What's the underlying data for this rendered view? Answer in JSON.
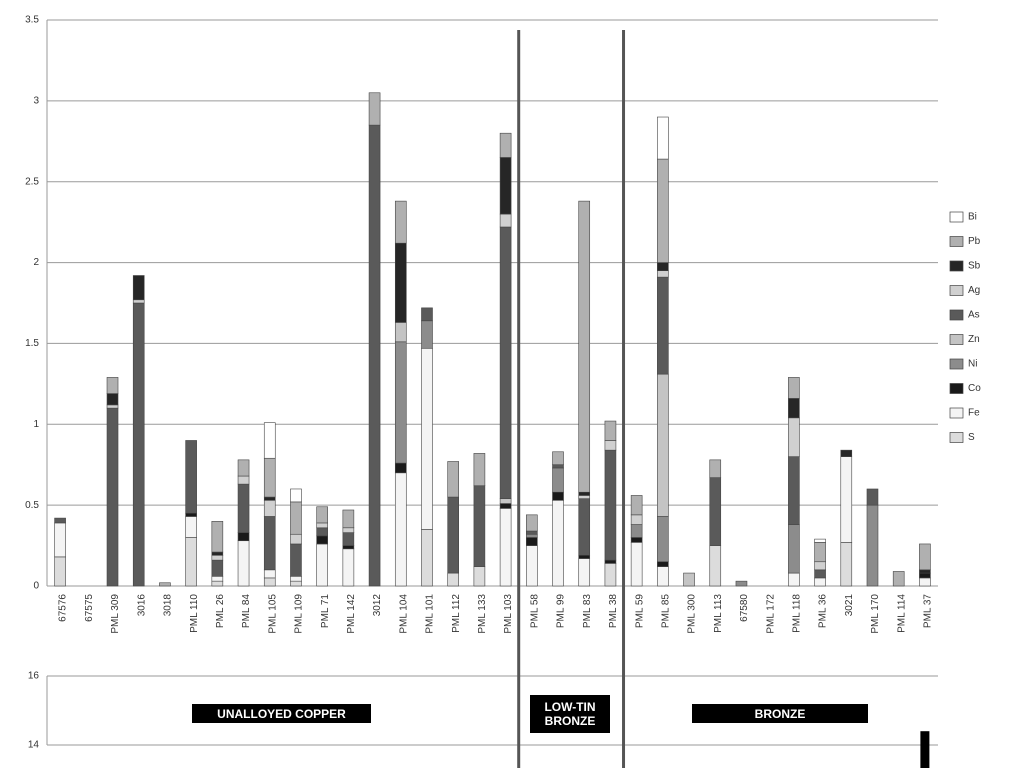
{
  "chart_data": [
    {
      "type": "bar",
      "stacked": true,
      "grid": true,
      "legend": "right",
      "annotations": [
        "UNALLOYED COPPER",
        "LOW-TIN BRONZE",
        "BRONZE"
      ],
      "categories": [
        "67576",
        "67575",
        "PML 309",
        "3016",
        "3018",
        "PML 110",
        "PML 26",
        "PML 84",
        "PML 105",
        "PML 109",
        "PML 71",
        "PML 142",
        "3012",
        "PML 104",
        "PML 101",
        "PML 112",
        "PML 133",
        "PML 103",
        "PML 58",
        "PML 99",
        "PML 83",
        "PML 38",
        "PML 59",
        "PML 85",
        "PML 300",
        "PML 113",
        "67580",
        "PML 172",
        "PML 118",
        "PML 36",
        "3021",
        "PML 170",
        "PML 114",
        "PML 37"
      ],
      "ylim": [
        0,
        3.5
      ],
      "yticks": [
        0,
        0.5,
        1,
        1.5,
        2,
        2.5,
        3,
        3.5
      ],
      "series": [
        {
          "name": "S",
          "color": "#dcdcdc",
          "values": [
            0.18,
            0,
            0,
            0,
            0,
            0.3,
            0.03,
            0,
            0.05,
            0.03,
            0,
            0,
            0,
            0,
            0.35,
            0.08,
            0.12,
            0,
            0,
            0,
            0,
            0.14,
            0,
            0,
            0,
            0.25,
            0,
            0,
            0,
            0,
            0.27,
            0,
            0,
            0
          ]
        },
        {
          "name": "Fe",
          "color": "#f4f4f4",
          "values": [
            0.21,
            0,
            0,
            0,
            0,
            0.13,
            0.03,
            0.28,
            0.05,
            0.03,
            0.26,
            0.23,
            0,
            0.7,
            1.12,
            0,
            0,
            0.48,
            0.25,
            0.53,
            0.17,
            0,
            0.27,
            0.12,
            0,
            0,
            0,
            0,
            0.08,
            0.05,
            0.53,
            0,
            0,
            0.05
          ]
        },
        {
          "name": "Co",
          "color": "#1a1a1a",
          "values": [
            0,
            0,
            0,
            0,
            0,
            0.02,
            0,
            0.05,
            0,
            0,
            0.05,
            0.02,
            0,
            0.06,
            0,
            0,
            0,
            0.03,
            0.05,
            0.05,
            0.02,
            0.02,
            0.03,
            0.03,
            0,
            0,
            0,
            0,
            0,
            0,
            0,
            0,
            0,
            0.03
          ]
        },
        {
          "name": "Ni",
          "color": "#8c8c8c",
          "values": [
            0,
            0,
            0,
            0,
            0,
            0,
            0,
            0,
            0,
            0,
            0,
            0,
            0,
            0.75,
            0.17,
            0,
            0,
            0,
            0.02,
            0.15,
            0,
            0,
            0.08,
            0.28,
            0,
            0,
            0.03,
            0,
            0.3,
            0,
            0,
            0.5,
            0,
            0
          ]
        },
        {
          "name": "Zn",
          "color": "#c4c4c4",
          "values": [
            0,
            0,
            0,
            0,
            0,
            0,
            0,
            0,
            0,
            0,
            0,
            0,
            0,
            0.12,
            0,
            0,
            0,
            0.03,
            0,
            0,
            0,
            0,
            0,
            0.88,
            0.08,
            0,
            0,
            0,
            0,
            0,
            0,
            0,
            0,
            0
          ]
        },
        {
          "name": "As",
          "color": "#5a5a5a",
          "values": [
            0.03,
            0,
            1.1,
            1.75,
            0,
            0.45,
            0.1,
            0.3,
            0.33,
            0.2,
            0.05,
            0.08,
            2.85,
            0,
            0.08,
            0.47,
            0.5,
            1.68,
            0.02,
            0.02,
            0.35,
            0.68,
            0,
            0.6,
            0,
            0.42,
            0,
            0,
            0.42,
            0.05,
            0,
            0.1,
            0,
            0
          ]
        },
        {
          "name": "Ag",
          "color": "#d0d0d0",
          "values": [
            0,
            0,
            0.02,
            0.02,
            0,
            0,
            0.03,
            0.05,
            0.1,
            0.06,
            0.03,
            0.03,
            0,
            0,
            0,
            0,
            0,
            0.08,
            0,
            0,
            0.02,
            0.06,
            0.06,
            0.04,
            0,
            0,
            0,
            0,
            0.24,
            0.05,
            0,
            0,
            0,
            0
          ]
        },
        {
          "name": "Sb",
          "color": "#262626",
          "values": [
            0,
            0,
            0.07,
            0.15,
            0,
            0,
            0.02,
            0,
            0.02,
            0,
            0,
            0,
            0,
            0.49,
            0,
            0,
            0,
            0.35,
            0,
            0,
            0.02,
            0,
            0,
            0.05,
            0,
            0,
            0,
            0,
            0.12,
            0,
            0.04,
            0,
            0,
            0.02
          ]
        },
        {
          "name": "Pb",
          "color": "#b0b0b0",
          "values": [
            0,
            0,
            0.1,
            0,
            0.02,
            0,
            0.19,
            0.1,
            0.24,
            0.2,
            0.1,
            0.11,
            0.2,
            0.26,
            0,
            0.22,
            0.2,
            0.15,
            0.1,
            0.08,
            1.8,
            0.12,
            0.12,
            0.64,
            0,
            0.11,
            0,
            0,
            0.13,
            0.12,
            0,
            0,
            0.09,
            0.16
          ]
        },
        {
          "name": "Bi",
          "color": "#ffffff",
          "values": [
            0,
            0,
            0,
            0,
            0,
            0,
            0,
            0,
            0.22,
            0.08,
            0,
            0,
            0,
            0,
            0,
            0,
            0,
            0,
            0,
            0,
            0,
            0,
            0,
            0.26,
            0,
            0,
            0,
            0,
            0,
            0.02,
            0,
            0,
            0,
            0
          ]
        }
      ]
    },
    {
      "type": "bar",
      "grid": true,
      "color": "#000000",
      "ylim": [
        14,
        16
      ],
      "yticks": [
        14,
        16
      ],
      "values": [
        null,
        null,
        null,
        null,
        null,
        null,
        null,
        null,
        null,
        null,
        null,
        null,
        null,
        null,
        null,
        null,
        null,
        null,
        null,
        null,
        null,
        null,
        null,
        null,
        null,
        null,
        null,
        null,
        null,
        null,
        null,
        null,
        null,
        14.4
      ]
    }
  ]
}
